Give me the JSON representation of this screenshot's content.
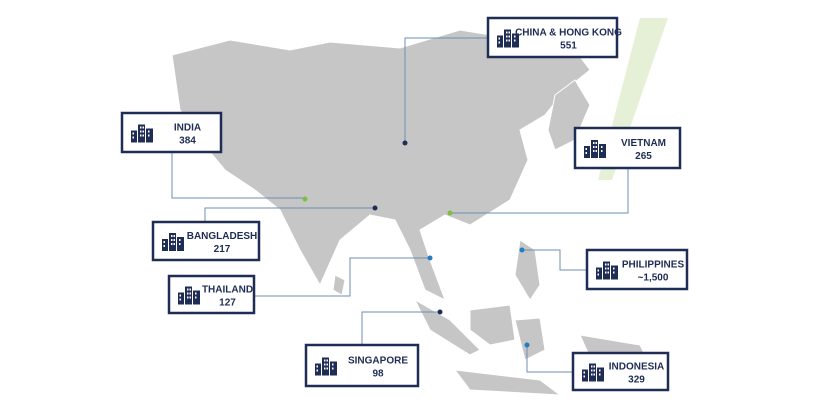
{
  "callouts": [
    {
      "name": "CHINA & HONG KONG",
      "value": "551"
    },
    {
      "name": "INDIA",
      "value": "384"
    },
    {
      "name": "VIETNAM",
      "value": "265"
    },
    {
      "name": "BANGLADESH",
      "value": "217"
    },
    {
      "name": "THAILAND",
      "value": "127"
    },
    {
      "name": "PHILIPPINES",
      "value": "~1,500"
    },
    {
      "name": "SINGAPORE",
      "value": "98"
    },
    {
      "name": "INDONESIA",
      "value": "329"
    }
  ]
}
